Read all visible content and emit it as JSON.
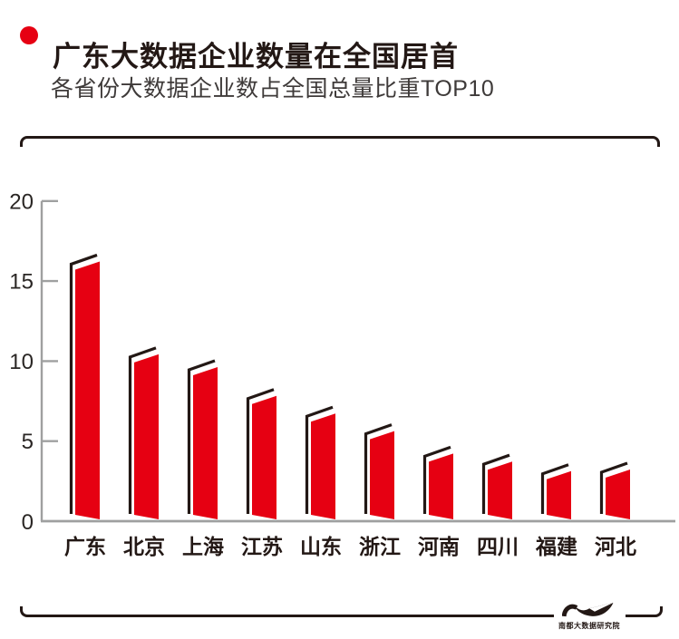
{
  "header": {
    "title": "广东大数据企业数量在全国居首",
    "subtitle": "各省份大数据企业数占全国总量比重TOP10"
  },
  "footer": {
    "logo_text": "南都大数据研究院"
  },
  "colors": {
    "bar_red": "#e60012",
    "outline_black": "#231815",
    "axis_gray": "#9fa0a0",
    "label_black": "#2a2624"
  },
  "chart_data": {
    "type": "bar",
    "title": "各省份大数据企业数占全国总量比重TOP10",
    "categories": [
      "广东",
      "北京",
      "上海",
      "江苏",
      "山东",
      "浙江",
      "河南",
      "四川",
      "福建",
      "河北"
    ],
    "values": [
      16.0,
      10.2,
      9.4,
      7.6,
      6.5,
      5.4,
      4.0,
      3.5,
      2.9,
      3.0
    ],
    "xlabel": "",
    "ylabel": "",
    "ylim": [
      0,
      20
    ],
    "yticks": [
      0,
      5,
      10,
      15,
      20
    ],
    "grid": false,
    "legend": null
  }
}
